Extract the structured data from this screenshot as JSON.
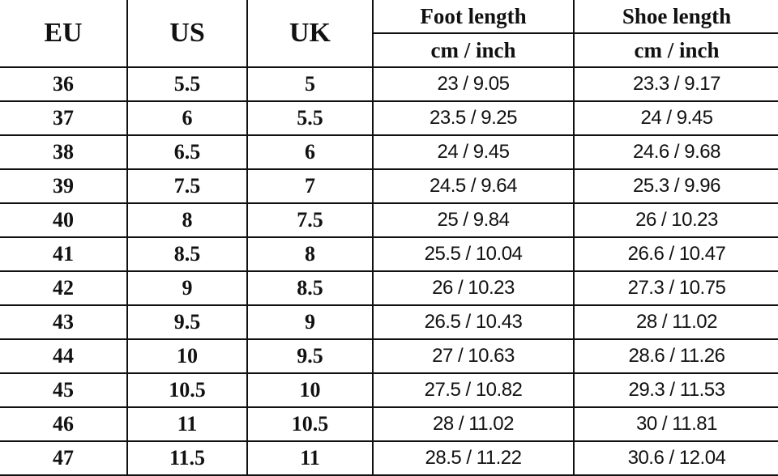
{
  "headers": {
    "eu": "EU",
    "us": "US",
    "uk": "UK",
    "foot_length": "Foot length",
    "shoe_length": "Shoe length",
    "foot_unit": "cm / inch",
    "shoe_unit": "cm / inch"
  },
  "rows": [
    {
      "eu": "36",
      "us": "5.5",
      "uk": "5",
      "foot": "23 / 9.05",
      "shoe": "23.3 / 9.17"
    },
    {
      "eu": "37",
      "us": "6",
      "uk": "5.5",
      "foot": "23.5 / 9.25",
      "shoe": "24 / 9.45"
    },
    {
      "eu": "38",
      "us": "6.5",
      "uk": "6",
      "foot": "24 / 9.45",
      "shoe": "24.6 / 9.68"
    },
    {
      "eu": "39",
      "us": "7.5",
      "uk": "7",
      "foot": "24.5 / 9.64",
      "shoe": "25.3 / 9.96"
    },
    {
      "eu": "40",
      "us": "8",
      "uk": "7.5",
      "foot": "25 / 9.84",
      "shoe": "26 / 10.23"
    },
    {
      "eu": "41",
      "us": "8.5",
      "uk": "8",
      "foot": "25.5 / 10.04",
      "shoe": "26.6 / 10.47"
    },
    {
      "eu": "42",
      "us": "9",
      "uk": "8.5",
      "foot": "26 / 10.23",
      "shoe": "27.3 / 10.75"
    },
    {
      "eu": "43",
      "us": "9.5",
      "uk": "9",
      "foot": "26.5 / 10.43",
      "shoe": "28 / 11.02"
    },
    {
      "eu": "44",
      "us": "10",
      "uk": "9.5",
      "foot": "27 / 10.63",
      "shoe": "28.6 / 11.26"
    },
    {
      "eu": "45",
      "us": "10.5",
      "uk": "10",
      "foot": "27.5 / 10.82",
      "shoe": "29.3 / 11.53"
    },
    {
      "eu": "46",
      "us": "11",
      "uk": "10.5",
      "foot": "28 / 11.02",
      "shoe": "30 / 11.81"
    },
    {
      "eu": "47",
      "us": "11.5",
      "uk": "11",
      "foot": "28.5 / 11.22",
      "shoe": "30.6 / 12.04"
    }
  ]
}
